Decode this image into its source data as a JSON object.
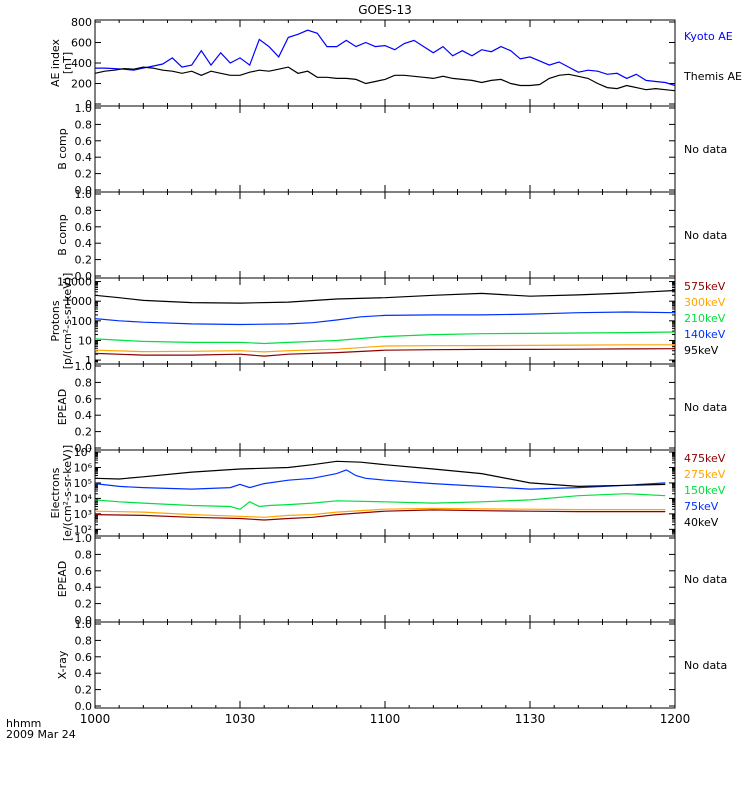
{
  "title": "GOES-13",
  "corner_label": {
    "line1": "hhmm",
    "line2": "2009 Mar 24"
  },
  "x_ticks": [
    "1000",
    "1030",
    "1100",
    "1130",
    "1200"
  ],
  "chart_data": [
    {
      "id": "ae",
      "type": "line",
      "ylabel": [
        "AE index",
        "[nT]"
      ],
      "ylim": [
        0,
        800
      ],
      "yscale": "linear",
      "yticks": [
        {
          "v": 0,
          "label": "0"
        },
        {
          "v": 200,
          "label": "200"
        },
        {
          "v": 400,
          "label": "400"
        },
        {
          "v": 600,
          "label": "600"
        },
        {
          "v": 800,
          "label": "800"
        }
      ],
      "series": [
        {
          "name": "Kyoto AE",
          "color": "#0000ff",
          "x": [
            0,
            2,
            4,
            6,
            8,
            10,
            12,
            14,
            16,
            18,
            20,
            22,
            24,
            26,
            28,
            30,
            32,
            34,
            36,
            38,
            40,
            42,
            44,
            46,
            48,
            50,
            52,
            54,
            56,
            58,
            60,
            62,
            64,
            66,
            68,
            70,
            72,
            74,
            76,
            78,
            80,
            82,
            84,
            86,
            88,
            90,
            92,
            94,
            96,
            98,
            100,
            102,
            104,
            106,
            108,
            110,
            112,
            114,
            116,
            118,
            120
          ],
          "y": [
            350,
            350,
            345,
            340,
            330,
            350,
            370,
            390,
            450,
            360,
            380,
            520,
            380,
            500,
            400,
            450,
            380,
            630,
            560,
            460,
            650,
            680,
            720,
            690,
            560,
            560,
            620,
            560,
            600,
            560,
            570,
            530,
            590,
            620,
            560,
            500,
            560,
            470,
            520,
            470,
            530,
            510,
            560,
            520,
            440,
            460,
            420,
            380,
            410,
            360,
            310,
            330,
            320,
            290,
            300,
            250,
            290,
            230,
            220,
            210,
            180
          ]
        },
        {
          "name": "Themis AE",
          "color": "#000000",
          "x": [
            0,
            2,
            4,
            6,
            8,
            10,
            12,
            14,
            16,
            18,
            20,
            22,
            24,
            26,
            28,
            30,
            32,
            34,
            36,
            38,
            40,
            42,
            44,
            46,
            48,
            50,
            52,
            54,
            56,
            58,
            60,
            62,
            64,
            66,
            68,
            70,
            72,
            74,
            76,
            78,
            80,
            82,
            84,
            86,
            88,
            90,
            92,
            94,
            96,
            98,
            100,
            102,
            104,
            106,
            108,
            110,
            112,
            114,
            116,
            118,
            120
          ],
          "y": [
            300,
            320,
            330,
            345,
            340,
            360,
            350,
            330,
            320,
            300,
            320,
            280,
            320,
            300,
            280,
            280,
            310,
            330,
            320,
            340,
            360,
            300,
            320,
            260,
            260,
            250,
            250,
            240,
            200,
            220,
            240,
            280,
            280,
            270,
            260,
            250,
            270,
            250,
            240,
            230,
            210,
            230,
            240,
            200,
            180,
            180,
            190,
            250,
            280,
            290,
            270,
            250,
            200,
            160,
            150,
            180,
            160,
            140,
            150,
            140,
            130
          ]
        }
      ]
    },
    {
      "id": "b1",
      "type": "line",
      "ylabel": [
        "B comp"
      ],
      "ylim": [
        0,
        1
      ],
      "yscale": "linear",
      "yticks": [
        {
          "v": 0,
          "label": "0.0"
        },
        {
          "v": 0.2,
          "label": "0.2"
        },
        {
          "v": 0.4,
          "label": "0.4"
        },
        {
          "v": 0.6,
          "label": "0.6"
        },
        {
          "v": 0.8,
          "label": "0.8"
        },
        {
          "v": 1.0,
          "label": "1.0"
        }
      ],
      "nodata": "No data",
      "series": []
    },
    {
      "id": "b2",
      "type": "line",
      "ylabel": [
        "B comp"
      ],
      "ylim": [
        0,
        1
      ],
      "yscale": "linear",
      "yticks": [
        {
          "v": 0,
          "label": "0.0"
        },
        {
          "v": 0.2,
          "label": "0.2"
        },
        {
          "v": 0.4,
          "label": "0.4"
        },
        {
          "v": 0.6,
          "label": "0.6"
        },
        {
          "v": 0.8,
          "label": "0.8"
        },
        {
          "v": 1.0,
          "label": "1.0"
        }
      ],
      "nodata": "No data",
      "series": []
    },
    {
      "id": "protons",
      "type": "line",
      "ylabel": [
        "Protons",
        "[p/(cm²-s-sr-keV)]"
      ],
      "ylim": [
        0.8,
        12000
      ],
      "yscale": "log",
      "yticks": [
        {
          "v": 1,
          "label": "1"
        },
        {
          "v": 10,
          "label": "10"
        },
        {
          "v": 100,
          "label": "100"
        },
        {
          "v": 1000,
          "label": "1000"
        },
        {
          "v": 10000,
          "label": "10000"
        }
      ],
      "series": [
        {
          "name": "575keV",
          "color": "#8b0000",
          "x": [
            0,
            10,
            20,
            30,
            35,
            40,
            50,
            60,
            70,
            80,
            90,
            100,
            110,
            120
          ],
          "y": [
            2.2,
            1.8,
            1.8,
            2.0,
            1.6,
            2.0,
            2.4,
            3.2,
            3.4,
            3.5,
            3.5,
            3.6,
            3.7,
            3.8
          ]
        },
        {
          "name": "300keV",
          "color": "#ffa500",
          "x": [
            0,
            10,
            20,
            30,
            35,
            40,
            50,
            60,
            70,
            80,
            90,
            100,
            110,
            120
          ],
          "y": [
            3.2,
            2.7,
            2.8,
            3.0,
            2.6,
            3.0,
            3.6,
            5.2,
            5.4,
            5.5,
            5.6,
            5.8,
            6.0,
            6.0
          ]
        },
        {
          "name": "210keV",
          "color": "#00e040",
          "x": [
            0,
            10,
            20,
            30,
            35,
            40,
            50,
            60,
            70,
            80,
            90,
            100,
            110,
            120
          ],
          "y": [
            12,
            9,
            8,
            8,
            7,
            8,
            10,
            16,
            20,
            22,
            23,
            24,
            25,
            27
          ]
        },
        {
          "name": "140keV",
          "color": "#0030ff",
          "x": [
            0,
            5,
            10,
            20,
            30,
            40,
            45,
            50,
            55,
            60,
            70,
            80,
            90,
            100,
            110,
            120
          ],
          "y": [
            130,
            100,
            85,
            70,
            65,
            70,
            80,
            110,
            160,
            190,
            200,
            200,
            220,
            260,
            280,
            260
          ]
        },
        {
          "name": "95keV",
          "color": "#000000",
          "x": [
            0,
            5,
            10,
            20,
            30,
            40,
            50,
            60,
            70,
            80,
            90,
            100,
            110,
            120
          ],
          "y": [
            2000,
            1500,
            1100,
            850,
            800,
            900,
            1300,
            1500,
            2000,
            2500,
            1800,
            2100,
            2600,
            3500
          ]
        }
      ]
    },
    {
      "id": "epead1",
      "type": "line",
      "ylabel": [
        "EPEAD"
      ],
      "ylim": [
        0,
        1
      ],
      "yscale": "linear",
      "yticks": [
        {
          "v": 0,
          "label": "0.0"
        },
        {
          "v": 0.2,
          "label": "0.2"
        },
        {
          "v": 0.4,
          "label": "0.4"
        },
        {
          "v": 0.6,
          "label": "0.6"
        },
        {
          "v": 0.8,
          "label": "0.8"
        },
        {
          "v": 1.0,
          "label": "1.0"
        }
      ],
      "nodata": "No data",
      "series": []
    },
    {
      "id": "electrons",
      "type": "line",
      "ylabel": [
        "Electrons",
        "[e/(cm²-s-sr-keV)]"
      ],
      "ylim": [
        50,
        10000000
      ],
      "yscale": "log",
      "yticks": [
        {
          "v": 100,
          "label": "10²"
        },
        {
          "v": 1000,
          "label": "10³"
        },
        {
          "v": 10000,
          "label": "10⁴"
        },
        {
          "v": 100000,
          "label": "10⁵"
        },
        {
          "v": 1000000,
          "label": "10⁶"
        },
        {
          "v": 10000000,
          "label": "10⁷"
        }
      ],
      "series": [
        {
          "name": "475keV",
          "color": "#8b0000",
          "x": [
            0,
            10,
            20,
            30,
            35,
            40,
            45,
            50,
            60,
            70,
            80,
            90,
            100,
            110,
            118
          ],
          "y": [
            900,
            800,
            600,
            500,
            400,
            500,
            600,
            900,
            1500,
            1800,
            1600,
            1500,
            1400,
            1400,
            1400
          ]
        },
        {
          "name": "275keV",
          "color": "#ffa500",
          "x": [
            0,
            10,
            20,
            30,
            35,
            40,
            45,
            50,
            60,
            70,
            80,
            90,
            100,
            110,
            118
          ],
          "y": [
            1500,
            1300,
            900,
            700,
            600,
            800,
            900,
            1300,
            2000,
            2300,
            2100,
            2000,
            1900,
            1900,
            1900
          ]
        },
        {
          "name": "150keV",
          "color": "#00e040",
          "x": [
            0,
            5,
            10,
            20,
            28,
            30,
            32,
            34,
            36,
            40,
            45,
            50,
            60,
            70,
            80,
            90,
            100,
            110,
            118
          ],
          "y": [
            8000,
            6000,
            5000,
            3500,
            3000,
            2000,
            6000,
            3000,
            3500,
            4000,
            5000,
            7000,
            6000,
            5000,
            6000,
            8000,
            15000,
            20000,
            15000
          ]
        },
        {
          "name": "75keV",
          "color": "#0030ff",
          "x": [
            0,
            5,
            10,
            20,
            28,
            30,
            32,
            35,
            40,
            45,
            50,
            52,
            54,
            56,
            60,
            70,
            80,
            90,
            100,
            110,
            118
          ],
          "y": [
            90000,
            60000,
            50000,
            40000,
            50000,
            80000,
            50000,
            90000,
            150000,
            200000,
            400000,
            700000,
            300000,
            200000,
            150000,
            90000,
            60000,
            40000,
            50000,
            70000,
            100000
          ]
        },
        {
          "name": "40keV",
          "color": "#000000",
          "x": [
            0,
            5,
            10,
            20,
            30,
            40,
            45,
            50,
            55,
            60,
            70,
            80,
            90,
            100,
            110,
            118
          ],
          "y": [
            200000,
            180000,
            250000,
            500000,
            800000,
            1000000,
            1500000,
            2500000,
            2200000,
            1500000,
            800000,
            400000,
            100000,
            60000,
            70000,
            80000
          ]
        }
      ]
    },
    {
      "id": "epead2",
      "type": "line",
      "ylabel": [
        "EPEAD"
      ],
      "ylim": [
        0,
        1
      ],
      "yscale": "linear",
      "yticks": [
        {
          "v": 0,
          "label": "0.0"
        },
        {
          "v": 0.2,
          "label": "0.2"
        },
        {
          "v": 0.4,
          "label": "0.4"
        },
        {
          "v": 0.6,
          "label": "0.6"
        },
        {
          "v": 0.8,
          "label": "0.8"
        },
        {
          "v": 1.0,
          "label": "1.0"
        }
      ],
      "nodata": "No data",
      "series": []
    },
    {
      "id": "xray",
      "type": "line",
      "ylabel": [
        "X-ray"
      ],
      "ylim": [
        0,
        1
      ],
      "yscale": "linear",
      "yticks": [
        {
          "v": 0,
          "label": "0.0"
        },
        {
          "v": 0.2,
          "label": "0.2"
        },
        {
          "v": 0.4,
          "label": "0.4"
        },
        {
          "v": 0.6,
          "label": "0.6"
        },
        {
          "v": 0.8,
          "label": "0.8"
        },
        {
          "v": 1.0,
          "label": "1.0"
        }
      ],
      "nodata": "No data",
      "series": []
    }
  ],
  "x_axis": {
    "range_minutes": [
      0,
      120
    ]
  }
}
